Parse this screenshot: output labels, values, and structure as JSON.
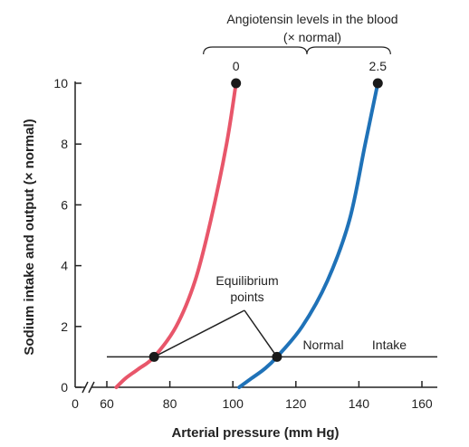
{
  "chart_data": {
    "type": "line",
    "xlabel": "Arterial pressure (mm Hg)",
    "ylabel": "Sodium intake and output (× normal)",
    "xlim": [
      0,
      160
    ],
    "ylim": [
      0,
      10
    ],
    "x_axis_break": true,
    "x_ticks": [
      {
        "value": 0,
        "label": "0"
      },
      {
        "value": 60,
        "label": "60"
      },
      {
        "value": 80,
        "label": "80"
      },
      {
        "value": 100,
        "label": "100"
      },
      {
        "value": 120,
        "label": "120"
      },
      {
        "value": 140,
        "label": "140"
      },
      {
        "value": 160,
        "label": "160"
      }
    ],
    "y_ticks": [
      {
        "value": 0,
        "label": "0"
      },
      {
        "value": 2,
        "label": "2"
      },
      {
        "value": 4,
        "label": "4"
      },
      {
        "value": 6,
        "label": "6"
      },
      {
        "value": 8,
        "label": "8"
      },
      {
        "value": 10,
        "label": "10"
      }
    ],
    "series": [
      {
        "label": "0",
        "color": "#e8566a",
        "points": [
          [
            63,
            0
          ],
          [
            66,
            0.3
          ],
          [
            70,
            0.6
          ],
          [
            75,
            1.0
          ],
          [
            82,
            2.0
          ],
          [
            88,
            3.5
          ],
          [
            93,
            5.5
          ],
          [
            98,
            8.0
          ],
          [
            101,
            10
          ]
        ]
      },
      {
        "label": "2.5",
        "color": "#1f72b8",
        "points": [
          [
            102,
            0
          ],
          [
            106,
            0.3
          ],
          [
            110,
            0.6
          ],
          [
            114,
            1.0
          ],
          [
            122,
            2.0
          ],
          [
            130,
            3.5
          ],
          [
            137,
            5.5
          ],
          [
            142,
            8.0
          ],
          [
            146,
            10
          ]
        ]
      }
    ],
    "intake_line": {
      "y": 1.0,
      "x_start": 60,
      "x_end": 160,
      "labels": [
        "Normal",
        "Intake"
      ]
    },
    "equilibrium_points": [
      [
        75,
        1.0
      ],
      [
        114,
        1.0
      ]
    ],
    "equilibrium_label": [
      "Equilibrium",
      "points"
    ],
    "top_annotation": [
      "Angiotensin levels in the blood",
      "(× normal)"
    ]
  }
}
